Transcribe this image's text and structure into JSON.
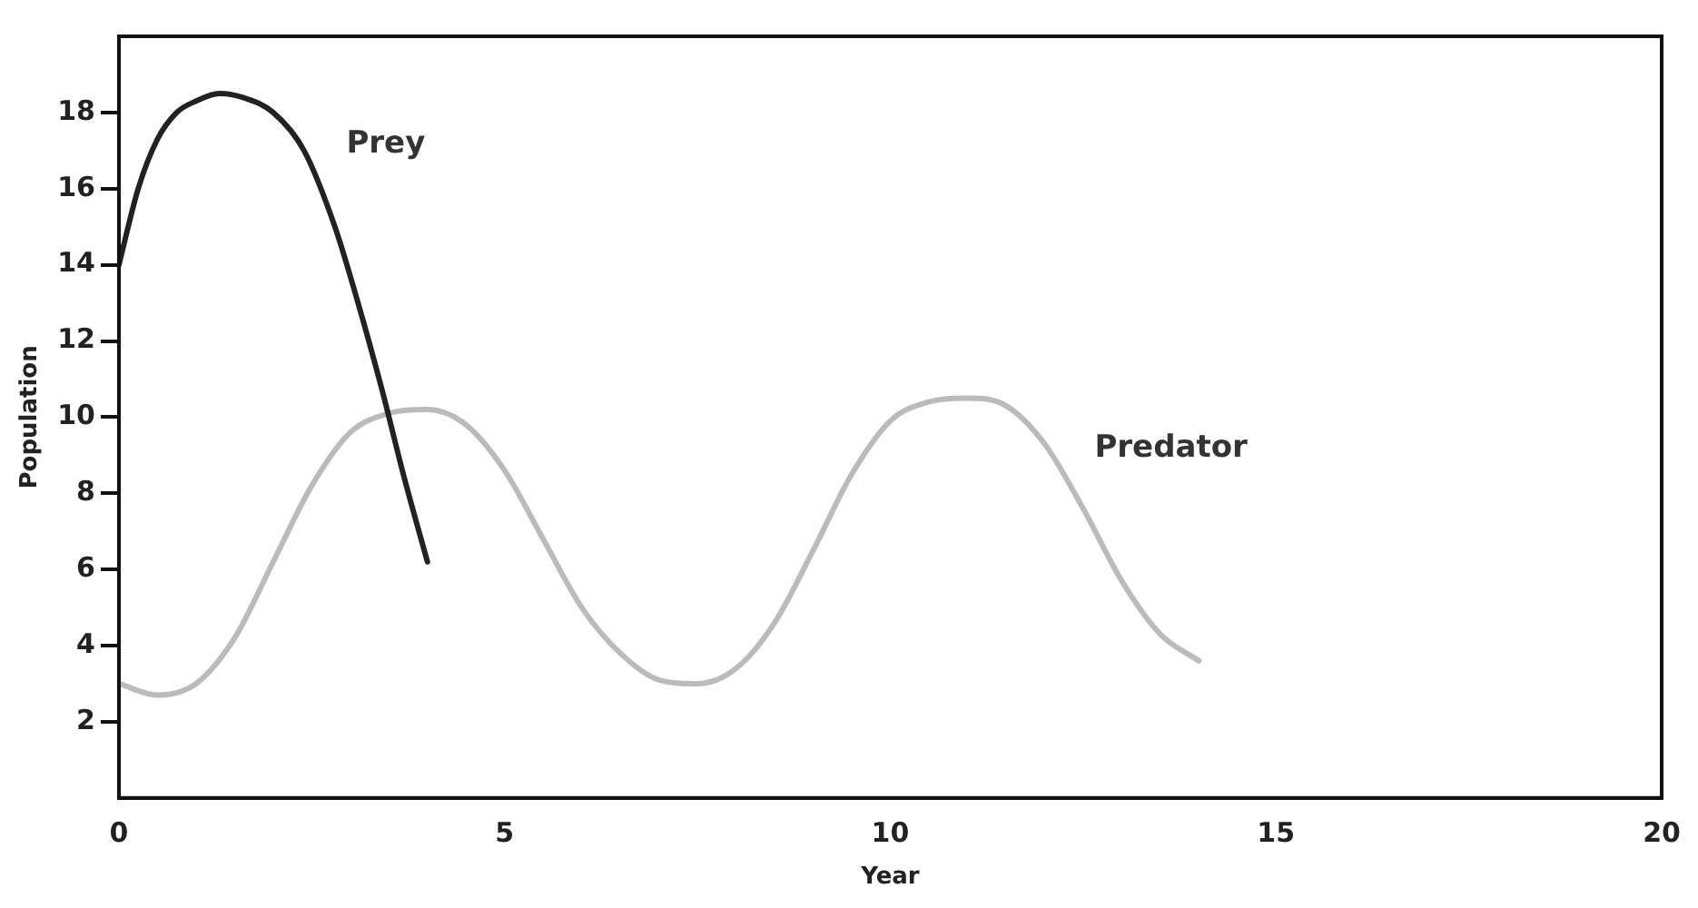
{
  "chart_data": {
    "type": "line",
    "xlabel": "Year",
    "ylabel": "Population",
    "xlim": [
      0,
      20
    ],
    "xticks": [
      0,
      5,
      10,
      15,
      20
    ],
    "ylim": [
      0,
      20
    ],
    "yticks": [
      2,
      4,
      6,
      8,
      10,
      12,
      14,
      16,
      18
    ],
    "grid": false,
    "legend": false,
    "marker": "none",
    "line_style": "solid",
    "series": [
      {
        "name": "Prey",
        "color": "#222222",
        "x": [
          0,
          0.25,
          0.5,
          0.75,
          1,
          1.3,
          1.6,
          2,
          2.4,
          2.8,
          3.1,
          3.4,
          3.7,
          4
        ],
        "values": [
          14,
          16,
          17.3,
          18,
          18.3,
          18.5,
          18.4,
          18,
          17,
          15,
          13,
          10.8,
          8.4,
          6.2
        ]
      },
      {
        "name": "Predator",
        "color": "#bbbbbb",
        "x": [
          0,
          0.5,
          1,
          1.5,
          2,
          2.5,
          3,
          3.5,
          4,
          4.5,
          5,
          5.5,
          6,
          6.5,
          7,
          7.5,
          8,
          8.5,
          9,
          9.5,
          10,
          10.5,
          11,
          11.5,
          12,
          12.5,
          13,
          13.5,
          14
        ],
        "values": [
          3,
          2.7,
          3,
          4.2,
          6.2,
          8.2,
          9.6,
          10.1,
          10.2,
          9.8,
          8.6,
          6.8,
          5,
          3.8,
          3.1,
          3,
          3.4,
          4.6,
          6.5,
          8.5,
          9.9,
          10.4,
          10.5,
          10.3,
          9.3,
          7.6,
          5.7,
          4.3,
          3.6
        ]
      }
    ]
  }
}
